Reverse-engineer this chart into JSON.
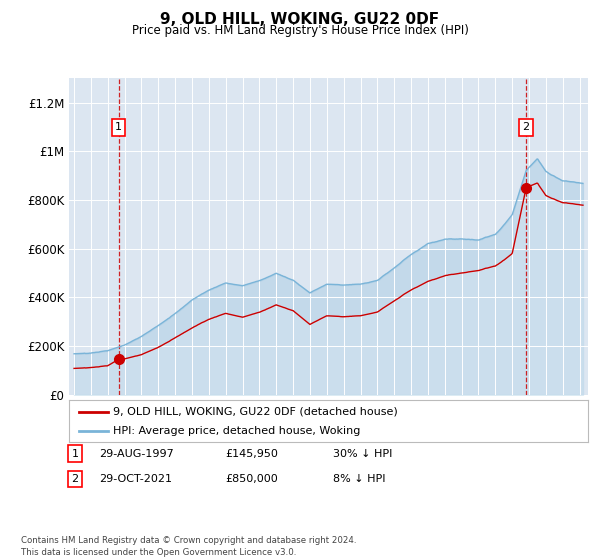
{
  "title": "9, OLD HILL, WOKING, GU22 0DF",
  "subtitle": "Price paid vs. HM Land Registry's House Price Index (HPI)",
  "ylim": [
    0,
    1300000
  ],
  "xlim_start": 1994.7,
  "xlim_end": 2025.5,
  "background_color": "#dce6f1",
  "hpi_color": "#7ab4d8",
  "sale_color": "#cc0000",
  "sale1_x": 1997.65,
  "sale1_y": 145950,
  "sale2_x": 2021.83,
  "sale2_y": 850000,
  "legend_entries": [
    "9, OLD HILL, WOKING, GU22 0DF (detached house)",
    "HPI: Average price, detached house, Woking"
  ],
  "table_rows": [
    [
      "1",
      "29-AUG-1997",
      "£145,950",
      "30% ↓ HPI"
    ],
    [
      "2",
      "29-OCT-2021",
      "£850,000",
      "8% ↓ HPI"
    ]
  ],
  "footer": "Contains HM Land Registry data © Crown copyright and database right 2024.\nThis data is licensed under the Open Government Licence v3.0.",
  "yticks": [
    0,
    200000,
    400000,
    600000,
    800000,
    1000000,
    1200000
  ],
  "ytick_labels": [
    "£0",
    "£200K",
    "£400K",
    "£600K",
    "£800K",
    "£1M",
    "£1.2M"
  ],
  "xticks": [
    1995,
    1996,
    1997,
    1998,
    1999,
    2000,
    2001,
    2002,
    2003,
    2004,
    2005,
    2006,
    2007,
    2008,
    2009,
    2010,
    2011,
    2012,
    2013,
    2014,
    2015,
    2016,
    2017,
    2018,
    2019,
    2020,
    2021,
    2022,
    2023,
    2024,
    2025
  ],
  "hpi_keypoints": [
    [
      1995.0,
      168000
    ],
    [
      1996.0,
      172000
    ],
    [
      1997.0,
      182000
    ],
    [
      1998.0,
      205000
    ],
    [
      1999.0,
      240000
    ],
    [
      2000.0,
      285000
    ],
    [
      2001.0,
      335000
    ],
    [
      2002.0,
      390000
    ],
    [
      2003.0,
      430000
    ],
    [
      2004.0,
      460000
    ],
    [
      2005.0,
      450000
    ],
    [
      2006.0,
      470000
    ],
    [
      2007.0,
      500000
    ],
    [
      2008.0,
      470000
    ],
    [
      2009.0,
      420000
    ],
    [
      2010.0,
      455000
    ],
    [
      2011.0,
      450000
    ],
    [
      2012.0,
      455000
    ],
    [
      2013.0,
      470000
    ],
    [
      2014.0,
      520000
    ],
    [
      2015.0,
      575000
    ],
    [
      2016.0,
      620000
    ],
    [
      2017.0,
      640000
    ],
    [
      2018.0,
      640000
    ],
    [
      2019.0,
      635000
    ],
    [
      2020.0,
      660000
    ],
    [
      2021.0,
      740000
    ],
    [
      2021.83,
      920000
    ],
    [
      2022.5,
      970000
    ],
    [
      2023.0,
      920000
    ],
    [
      2024.0,
      880000
    ],
    [
      2025.2,
      870000
    ]
  ],
  "sale_keypoints": [
    [
      1995.0,
      108000
    ],
    [
      1996.0,
      112000
    ],
    [
      1997.0,
      120000
    ],
    [
      1997.65,
      145950
    ],
    [
      1998.0,
      148000
    ],
    [
      1999.0,
      165000
    ],
    [
      2000.0,
      195000
    ],
    [
      2001.0,
      235000
    ],
    [
      2002.0,
      275000
    ],
    [
      2003.0,
      310000
    ],
    [
      2004.0,
      335000
    ],
    [
      2005.0,
      320000
    ],
    [
      2006.0,
      340000
    ],
    [
      2007.0,
      370000
    ],
    [
      2008.0,
      345000
    ],
    [
      2009.0,
      290000
    ],
    [
      2010.0,
      325000
    ],
    [
      2011.0,
      320000
    ],
    [
      2012.0,
      325000
    ],
    [
      2013.0,
      340000
    ],
    [
      2014.0,
      385000
    ],
    [
      2015.0,
      430000
    ],
    [
      2016.0,
      465000
    ],
    [
      2017.0,
      490000
    ],
    [
      2018.0,
      500000
    ],
    [
      2019.0,
      510000
    ],
    [
      2020.0,
      530000
    ],
    [
      2021.0,
      580000
    ],
    [
      2021.83,
      850000
    ],
    [
      2022.5,
      870000
    ],
    [
      2023.0,
      820000
    ],
    [
      2024.0,
      790000
    ],
    [
      2025.2,
      780000
    ]
  ]
}
